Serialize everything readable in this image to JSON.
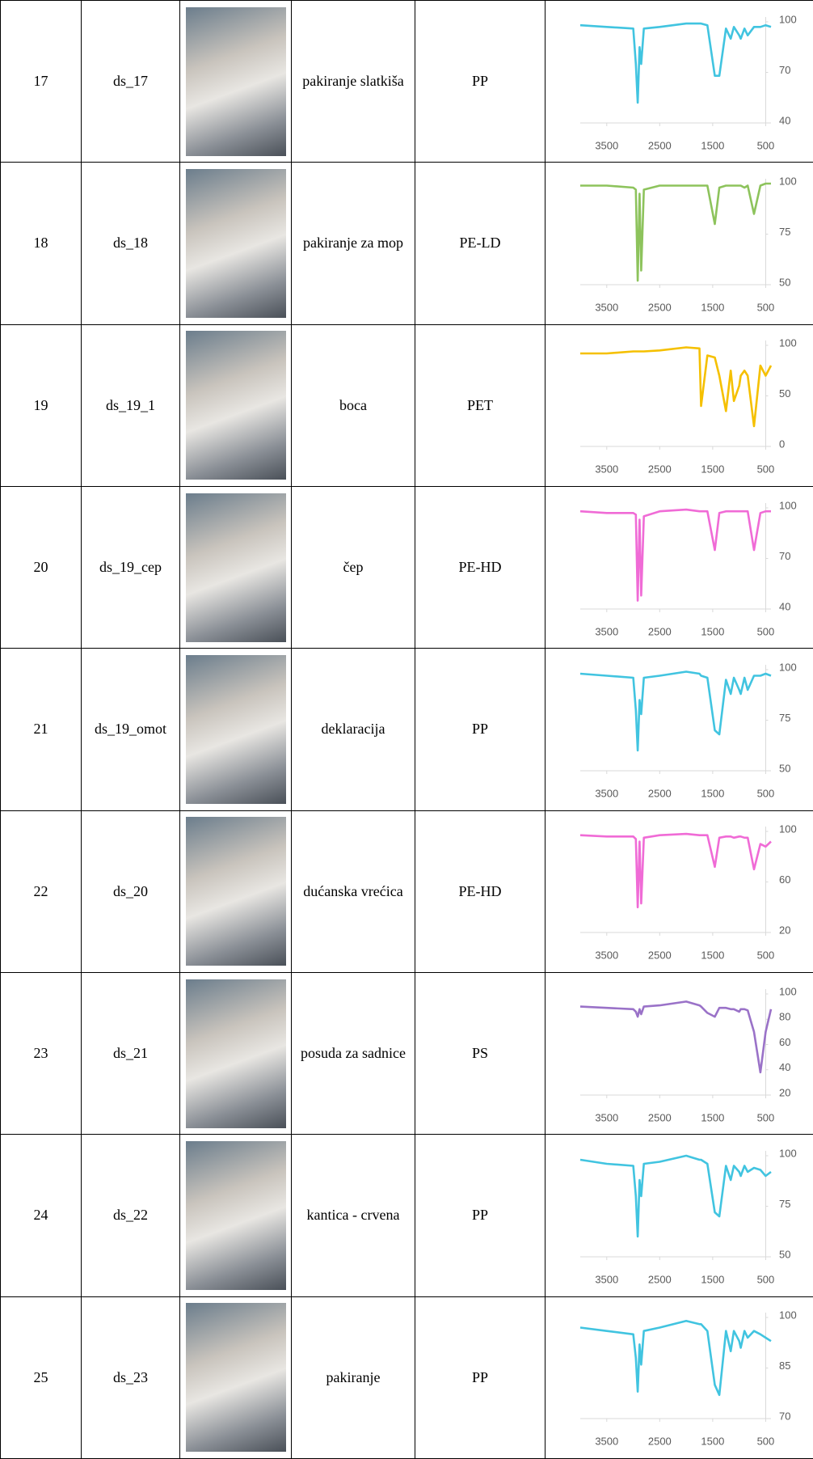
{
  "table": {
    "rows": [
      {
        "no": "17",
        "id": "ds_17",
        "item": "pakiranje slatkiša",
        "polymer": "PP",
        "spectrum": {
          "type": "line",
          "color": "#41c4e0",
          "x": [
            4000,
            3500,
            3000,
            2950,
            2915,
            2880,
            2850,
            2800,
            2500,
            2000,
            1750,
            1720,
            1600,
            1460,
            1375,
            1250,
            1160,
            1100,
            1000,
            970,
            900,
            840,
            720,
            600,
            500,
            400
          ],
          "values": [
            98,
            97,
            96,
            75,
            52,
            85,
            75,
            96,
            97,
            99,
            99,
            99,
            98,
            68,
            68,
            96,
            90,
            97,
            92,
            90,
            96,
            92,
            97,
            97,
            98,
            97
          ],
          "xlim": [
            4000,
            400
          ],
          "xticks": [
            3500,
            2500,
            1500,
            500
          ],
          "ylim": [
            40,
            100
          ],
          "yticks": [
            40,
            70,
            100
          ]
        }
      },
      {
        "no": "18",
        "id": "ds_18",
        "item": "pakiranje za mop",
        "polymer": "PE-LD",
        "spectrum": {
          "type": "line",
          "color": "#8dc35c",
          "x": [
            4000,
            3500,
            3000,
            2950,
            2915,
            2880,
            2850,
            2800,
            2500,
            2000,
            1750,
            1720,
            1600,
            1460,
            1375,
            1250,
            1160,
            1100,
            1000,
            970,
            900,
            840,
            720,
            600,
            500,
            400
          ],
          "values": [
            99,
            99,
            98,
            97,
            52,
            95,
            57,
            97,
            99,
            99,
            99,
            99,
            99,
            80,
            98,
            99,
            99,
            99,
            99,
            99,
            98,
            99,
            85,
            99,
            100,
            100
          ],
          "xlim": [
            4000,
            400
          ],
          "xticks": [
            3500,
            2500,
            1500,
            500
          ],
          "ylim": [
            50,
            100
          ],
          "yticks": [
            50,
            75,
            100
          ]
        }
      },
      {
        "no": "19",
        "id": "ds_19_1",
        "item": "boca",
        "polymer": "PET",
        "spectrum": {
          "type": "line",
          "color": "#f5c000",
          "x": [
            4000,
            3500,
            3000,
            2950,
            2915,
            2880,
            2850,
            2800,
            2500,
            2000,
            1750,
            1720,
            1600,
            1460,
            1375,
            1250,
            1160,
            1100,
            1000,
            970,
            900,
            840,
            720,
            600,
            500,
            400
          ],
          "values": [
            92,
            92,
            94,
            94,
            94,
            94,
            94,
            94,
            95,
            98,
            97,
            40,
            90,
            88,
            70,
            35,
            75,
            45,
            60,
            70,
            75,
            70,
            20,
            80,
            70,
            80
          ],
          "xlim": [
            4000,
            400
          ],
          "xticks": [
            3500,
            2500,
            1500,
            500
          ],
          "ylim": [
            0,
            100
          ],
          "yticks": [
            0,
            50,
            100
          ]
        }
      },
      {
        "no": "20",
        "id": "ds_19_cep",
        "item": "čep",
        "polymer": "PE-HD",
        "spectrum": {
          "type": "line",
          "color": "#f06bd6",
          "x": [
            4000,
            3500,
            3000,
            2950,
            2915,
            2880,
            2850,
            2800,
            2500,
            2000,
            1750,
            1720,
            1600,
            1460,
            1375,
            1250,
            1160,
            1100,
            1000,
            970,
            900,
            840,
            720,
            600,
            500,
            400
          ],
          "values": [
            98,
            97,
            97,
            96,
            45,
            93,
            48,
            95,
            98,
            99,
            98,
            98,
            98,
            75,
            97,
            98,
            98,
            98,
            98,
            98,
            98,
            98,
            75,
            97,
            98,
            98
          ],
          "xlim": [
            4000,
            400
          ],
          "xticks": [
            3500,
            2500,
            1500,
            500
          ],
          "ylim": [
            40,
            100
          ],
          "yticks": [
            40,
            70,
            100
          ]
        }
      },
      {
        "no": "21",
        "id": "ds_19_omot",
        "item": "deklaracija",
        "polymer": "PP",
        "spectrum": {
          "type": "line",
          "color": "#41c4e0",
          "x": [
            4000,
            3500,
            3000,
            2950,
            2915,
            2880,
            2850,
            2800,
            2500,
            2000,
            1750,
            1720,
            1600,
            1460,
            1375,
            1250,
            1160,
            1100,
            1000,
            970,
            900,
            840,
            720,
            600,
            500,
            400
          ],
          "values": [
            98,
            97,
            96,
            80,
            60,
            85,
            78,
            96,
            97,
            99,
            98,
            97,
            96,
            70,
            68,
            95,
            88,
            96,
            90,
            88,
            96,
            90,
            97,
            97,
            98,
            97
          ],
          "xlim": [
            4000,
            400
          ],
          "xticks": [
            3500,
            2500,
            1500,
            500
          ],
          "ylim": [
            50,
            100
          ],
          "yticks": [
            50,
            75,
            100
          ]
        }
      },
      {
        "no": "22",
        "id": "ds_20",
        "item": "dućanska vrećica",
        "polymer": "PE-HD",
        "spectrum": {
          "type": "line",
          "color": "#f06bd6",
          "x": [
            4000,
            3500,
            3000,
            2950,
            2915,
            2880,
            2850,
            2800,
            2500,
            2000,
            1750,
            1720,
            1600,
            1460,
            1375,
            1250,
            1160,
            1100,
            1000,
            970,
            900,
            840,
            720,
            600,
            500,
            400
          ],
          "values": [
            97,
            96,
            96,
            94,
            40,
            92,
            43,
            95,
            97,
            98,
            97,
            97,
            97,
            72,
            95,
            96,
            96,
            95,
            96,
            96,
            95,
            95,
            70,
            90,
            88,
            92
          ],
          "xlim": [
            4000,
            400
          ],
          "xticks": [
            3500,
            2500,
            1500,
            500
          ],
          "ylim": [
            20,
            100
          ],
          "yticks": [
            20,
            60,
            100
          ]
        }
      },
      {
        "no": "23",
        "id": "ds_21",
        "item": "posuda za sadnice",
        "polymer": "PS",
        "spectrum": {
          "type": "line",
          "color": "#9a72c8",
          "x": [
            4000,
            3500,
            3000,
            2950,
            2915,
            2880,
            2850,
            2800,
            2500,
            2000,
            1750,
            1720,
            1600,
            1460,
            1375,
            1250,
            1160,
            1100,
            1000,
            970,
            900,
            840,
            720,
            600,
            500,
            400
          ],
          "values": [
            90,
            89,
            88,
            86,
            82,
            88,
            84,
            90,
            91,
            94,
            91,
            90,
            85,
            82,
            89,
            89,
            88,
            88,
            86,
            88,
            88,
            87,
            70,
            38,
            70,
            88
          ],
          "xlim": [
            4000,
            400
          ],
          "xticks": [
            3500,
            2500,
            1500,
            500
          ],
          "ylim": [
            20,
            100
          ],
          "yticks": [
            20,
            40,
            60,
            80,
            100
          ]
        }
      },
      {
        "no": "24",
        "id": "ds_22",
        "item": "kantica - crvena",
        "polymer": "PP",
        "spectrum": {
          "type": "line",
          "color": "#41c4e0",
          "x": [
            4000,
            3500,
            3000,
            2950,
            2915,
            2880,
            2850,
            2800,
            2500,
            2000,
            1750,
            1720,
            1600,
            1460,
            1375,
            1250,
            1160,
            1100,
            1000,
            970,
            900,
            840,
            720,
            600,
            500,
            400
          ],
          "values": [
            98,
            96,
            95,
            80,
            60,
            88,
            80,
            96,
            97,
            100,
            98,
            98,
            96,
            72,
            70,
            95,
            88,
            95,
            92,
            90,
            95,
            92,
            94,
            93,
            90,
            92
          ],
          "xlim": [
            4000,
            400
          ],
          "xticks": [
            3500,
            2500,
            1500,
            500
          ],
          "ylim": [
            50,
            100
          ],
          "yticks": [
            50,
            75,
            100
          ]
        }
      },
      {
        "no": "25",
        "id": "ds_23",
        "item": "pakiranje",
        "polymer": "PP",
        "spectrum": {
          "type": "line",
          "color": "#41c4e0",
          "x": [
            4000,
            3500,
            3000,
            2950,
            2915,
            2880,
            2850,
            2800,
            2500,
            2000,
            1750,
            1720,
            1600,
            1460,
            1375,
            1250,
            1160,
            1100,
            1000,
            970,
            900,
            840,
            720,
            600,
            500,
            400
          ],
          "values": [
            97,
            96,
            95,
            88,
            78,
            92,
            86,
            96,
            97,
            99,
            98,
            98,
            96,
            80,
            77,
            96,
            90,
            96,
            93,
            91,
            96,
            94,
            96,
            95,
            94,
            93
          ],
          "xlim": [
            4000,
            400
          ],
          "xticks": [
            3500,
            2500,
            1500,
            500
          ],
          "ylim": [
            70,
            100
          ],
          "yticks": [
            70,
            85,
            100
          ]
        }
      }
    ]
  }
}
